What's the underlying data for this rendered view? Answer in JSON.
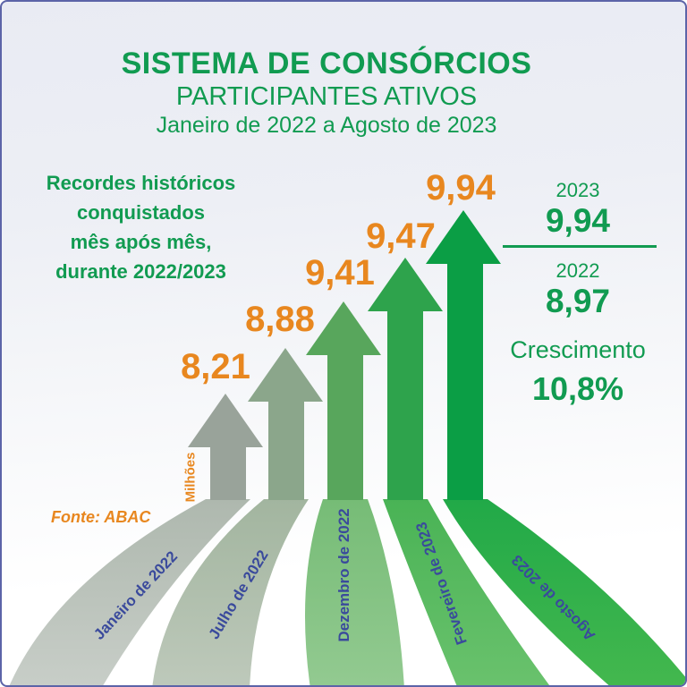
{
  "header": {
    "title": "SISTEMA DE CONSÓRCIOS",
    "subtitle": "PARTICIPANTES ATIVOS",
    "period": "Janeiro de 2022 a Agosto de 2023"
  },
  "message": {
    "text": "Recordes históricos\nconquistados\nmês após mês,\ndurante 2022/2023"
  },
  "source": "Fonte: ABAC",
  "unit_label": "Milhões",
  "summary": {
    "year_top": "2023",
    "value_top": "9,94",
    "year_bottom": "2022",
    "value_bottom": "8,97",
    "growth_label": "Crescimento",
    "growth_value": "10,8%"
  },
  "colors": {
    "green_text": "#119b51",
    "orange_text": "#e8871f",
    "month_text": "#3a4a9c",
    "frame_border": "#5c64a8"
  },
  "chart_data": {
    "type": "bar",
    "title": "SISTEMA DE CONSÓRCIOS — PARTICIPANTES ATIVOS",
    "subtitle": "Janeiro de 2022 a Agosto de 2023",
    "unit": "Milhões",
    "style": "upward-arrow bars in shades of green, fanned ribbon tails",
    "categories": [
      "Janeiro de 2022",
      "Julho de 2022",
      "Dezembro de 2022",
      "Fevereiro de 2023",
      "Agosto de 2023"
    ],
    "values": [
      8.21,
      8.88,
      9.41,
      9.47,
      9.94
    ],
    "value_labels": [
      "8,21",
      "8,88",
      "9,41",
      "9,47",
      "9,94"
    ],
    "annotations": {
      "value_2023": "9,94",
      "value_2022": "8,97",
      "growth": "10,8%"
    },
    "points": [
      {
        "month": "Janeiro de 2022",
        "value": 8.21,
        "label": "8,21",
        "arrow_color": "#99a39a",
        "tail_top": "#aeb8ae",
        "tail_bottom": "#c8cec8"
      },
      {
        "month": "Julho de 2022",
        "value": 8.88,
        "label": "8,88",
        "arrow_color": "#8ba68b",
        "tail_top": "#a2b59f",
        "tail_bottom": "#bec9bb"
      },
      {
        "month": "Dezembro de 2022",
        "value": 9.41,
        "label": "9,41",
        "arrow_color": "#58a65c",
        "tail_top": "#76bc76",
        "tail_bottom": "#93ca91"
      },
      {
        "month": "Fevereiro de 2023",
        "value": 9.47,
        "label": "9,47",
        "arrow_color": "#2ea34c",
        "tail_top": "#49b355",
        "tail_bottom": "#6ac26d"
      },
      {
        "month": "Agosto de 2023",
        "value": 9.94,
        "label": "9,94",
        "arrow_color": "#0b9e45",
        "tail_top": "#21a948",
        "tail_bottom": "#44b84e"
      }
    ]
  }
}
